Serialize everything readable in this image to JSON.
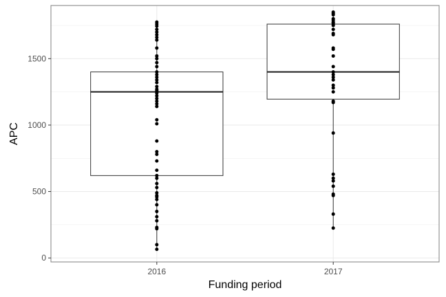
{
  "chart_data": {
    "type": "boxplot",
    "xlabel": "Funding period",
    "ylabel": "APC",
    "categories": [
      "2016",
      "2017"
    ],
    "ylim": [
      -30,
      1900
    ],
    "y_ticks": [
      0,
      500,
      1000,
      1500
    ],
    "y_tick_labels": [
      "0",
      "500",
      "1000",
      "1500"
    ],
    "grid": true,
    "theme": "bw",
    "boxes": [
      {
        "category": "2016",
        "q1": 620,
        "median": 1250,
        "q3": 1400,
        "whisker_low": 65,
        "whisker_high": 1775
      },
      {
        "category": "2017",
        "q1": 1195,
        "median": 1400,
        "q3": 1760,
        "whisker_low": 225,
        "whisker_high": 1850
      }
    ],
    "points": {
      "2016": [
        1775,
        1760,
        1745,
        1720,
        1700,
        1680,
        1660,
        1640,
        1580,
        1520,
        1500,
        1470,
        1440,
        1400,
        1380,
        1360,
        1340,
        1320,
        1290,
        1270,
        1260,
        1250,
        1240,
        1220,
        1200,
        1180,
        1160,
        1140,
        1040,
        1010,
        880,
        800,
        780,
        730,
        660,
        620,
        600,
        560,
        530,
        490,
        470,
        460,
        440,
        400,
        350,
        310,
        280,
        230,
        220,
        100,
        65
      ],
      "2017": [
        1850,
        1840,
        1830,
        1800,
        1790,
        1775,
        1770,
        1760,
        1750,
        1720,
        1690,
        1680,
        1580,
        1570,
        1520,
        1440,
        1400,
        1380,
        1360,
        1340,
        1300,
        1280,
        1250,
        1180,
        1170,
        940,
        630,
        600,
        580,
        540,
        480,
        470,
        330,
        225
      ]
    },
    "colors": {
      "box_line": "#333333",
      "median": "#1a1a1a",
      "point": "#000000",
      "grid": "#ebebeb",
      "panel_border": "#7f7f7f"
    }
  }
}
